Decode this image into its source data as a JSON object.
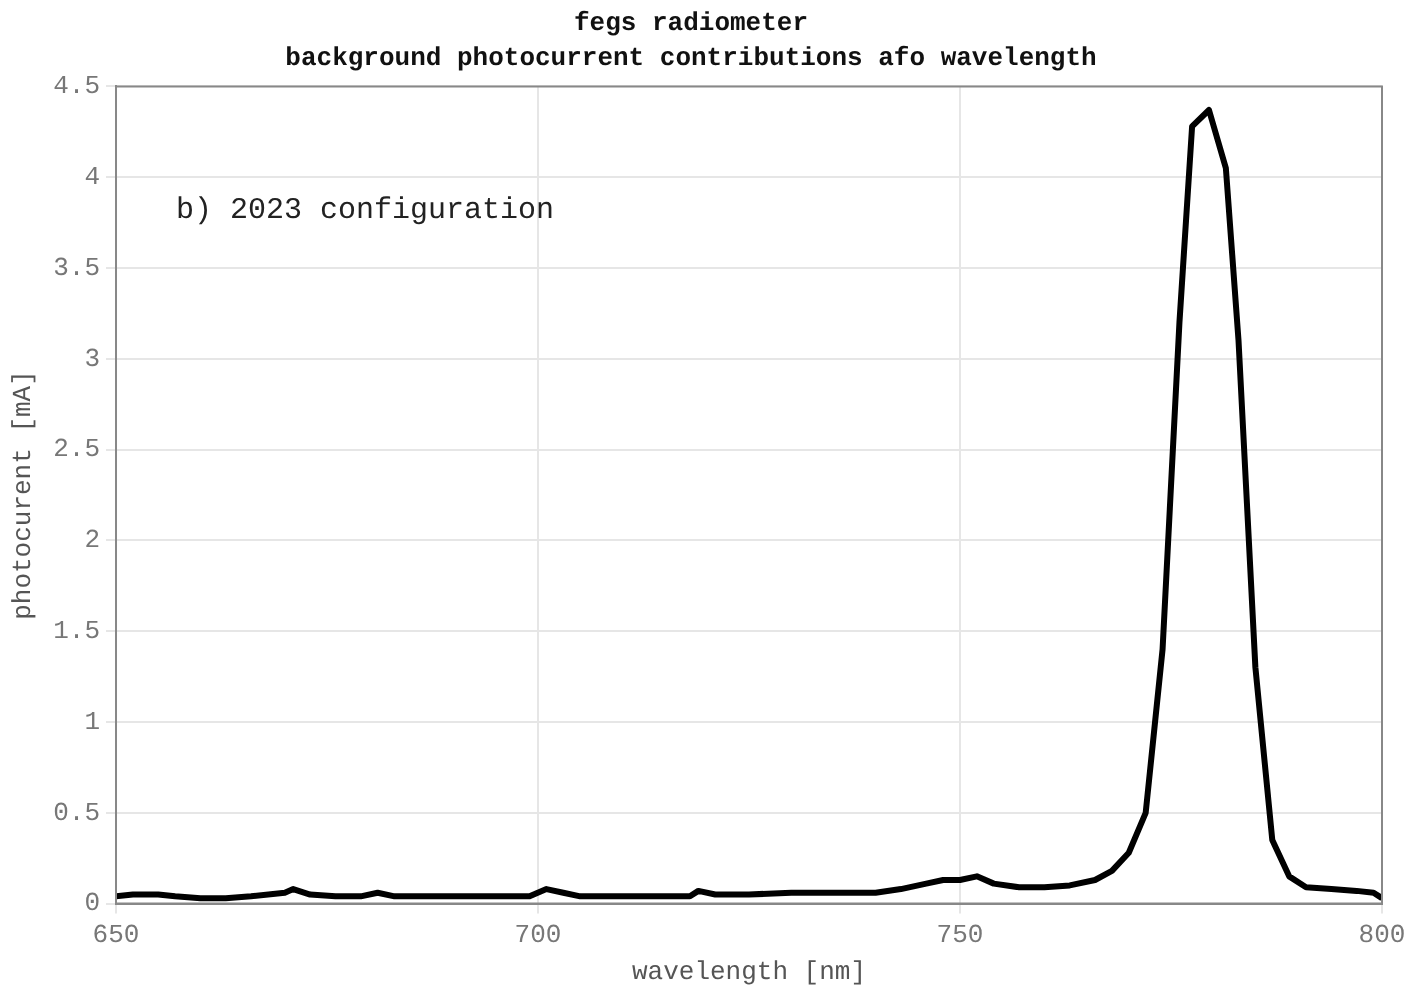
{
  "chart_data": {
    "type": "line",
    "title": "fegs radiometer",
    "subtitle": "background photocurrent contributions afo wavelength",
    "xlabel": "wavelength [nm]",
    "ylabel": "photocurent [mA]",
    "annotations": [
      "b) 2023 configuration"
    ],
    "x": [
      650,
      652,
      655,
      657,
      660,
      663,
      666,
      670,
      671,
      673,
      676,
      679,
      681,
      683,
      686,
      690,
      695,
      699,
      701,
      703,
      705,
      710,
      715,
      718,
      719,
      721,
      725,
      730,
      735,
      740,
      743,
      746,
      748,
      750,
      752,
      754,
      757,
      760,
      763,
      766,
      768,
      770,
      772,
      774,
      776,
      777.5,
      779.5,
      781.5,
      783,
      785,
      787,
      789,
      791,
      794,
      797,
      799,
      800
    ],
    "series": [
      {
        "color": "#000000",
        "values": [
          0.04,
          0.05,
          0.05,
          0.04,
          0.03,
          0.03,
          0.04,
          0.06,
          0.08,
          0.05,
          0.04,
          0.04,
          0.06,
          0.04,
          0.04,
          0.04,
          0.04,
          0.04,
          0.08,
          0.06,
          0.04,
          0.04,
          0.04,
          0.04,
          0.07,
          0.05,
          0.05,
          0.06,
          0.06,
          0.06,
          0.08,
          0.11,
          0.13,
          0.13,
          0.15,
          0.11,
          0.09,
          0.09,
          0.1,
          0.13,
          0.18,
          0.28,
          0.5,
          1.4,
          3.2,
          4.28,
          4.37,
          4.05,
          3.1,
          1.3,
          0.35,
          0.15,
          0.09,
          0.08,
          0.07,
          0.06,
          0.03
        ]
      }
    ],
    "xlim": [
      650,
      800
    ],
    "xticks": [
      650,
      700,
      750,
      800
    ],
    "ylim": [
      0,
      4.5
    ],
    "yticks": [
      0,
      0.5,
      1,
      1.5,
      2,
      2.5,
      3,
      3.5,
      4,
      4.5
    ],
    "grid": true,
    "legend": false,
    "marker": "none",
    "line_style": "solid"
  }
}
